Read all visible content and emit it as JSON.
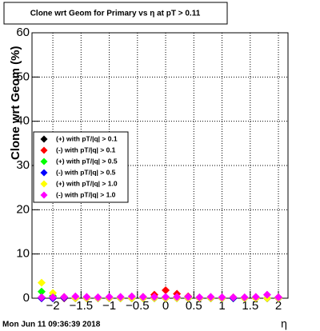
{
  "chart_data": {
    "type": "scatter",
    "title": "Clone wrt Geom for Primary vs   η at pT > 0.11",
    "y_label": "Clone wrt Geom (%)",
    "x_label": "η",
    "footer": "Mon Jun 11 09:36:39 2018",
    "x": [
      -2.2,
      -2.0,
      -1.8,
      -1.6,
      -1.4,
      -1.2,
      -1.0,
      -0.8,
      -0.6,
      -0.4,
      -0.2,
      0,
      0.2,
      0.4,
      0.6,
      0.8,
      1.0,
      1.2,
      1.4,
      1.6,
      1.8,
      2.0
    ],
    "series": [
      {
        "name": "(+) with pT/|q| > 0.1",
        "color": "#000000",
        "values": [
          0.1,
          0,
          0,
          0,
          0,
          0,
          0,
          0,
          0,
          0,
          0.1,
          0.2,
          0.1,
          0,
          0,
          0,
          0,
          0,
          0,
          0,
          0,
          0.1
        ]
      },
      {
        "name": "(-) with pT/|q| > 0.1",
        "color": "#ff0000",
        "values": [
          0,
          0,
          0,
          0,
          0,
          0,
          0,
          0,
          0,
          0.3,
          0.8,
          1.8,
          1.0,
          0.4,
          0,
          0,
          0,
          0,
          0,
          0,
          0,
          0.2
        ]
      },
      {
        "name": "(+) with pT/|q| > 0.5",
        "color": "#00ff00",
        "values": [
          1.5,
          0.5,
          0.2,
          0,
          0,
          0,
          0,
          0,
          0,
          0,
          0,
          0,
          0,
          0,
          0,
          0,
          0,
          0,
          0,
          0,
          0,
          0
        ]
      },
      {
        "name": "(-) with pT/|q| > 0.5",
        "color": "#0000ff",
        "values": [
          0,
          0,
          0.1,
          0,
          0,
          0,
          0,
          0,
          0,
          0,
          0,
          0,
          0,
          0,
          0,
          0,
          0,
          0,
          0.1,
          0.1,
          0,
          0
        ]
      },
      {
        "name": "(+) with pT/|q| > 1.0",
        "color": "#ffff00",
        "values": [
          3.5,
          1.2,
          0.3,
          0,
          0,
          0,
          0,
          0,
          0,
          0,
          0,
          0,
          0,
          0,
          0,
          0,
          0,
          0.2,
          0,
          0,
          0,
          0
        ]
      },
      {
        "name": "(-) with pT/|q| > 1.0",
        "color": "#ff00ff",
        "values": [
          0.2,
          0.2,
          0.3,
          0.4,
          0.3,
          0.2,
          0.3,
          0.3,
          0.4,
          0.3,
          0.3,
          0.3,
          0.3,
          0.3,
          0.2,
          0.3,
          0.2,
          0.2,
          0.2,
          0.3,
          0.8,
          0.2
        ]
      }
    ],
    "xlim": [
      -2.37,
      2.17
    ],
    "xticks": [
      {
        "value": -2,
        "label": "−2"
      },
      {
        "value": -1.5,
        "label": "−1.5"
      },
      {
        "value": -1,
        "label": "−1"
      },
      {
        "value": -0.5,
        "label": "−0.5"
      },
      0,
      0.5,
      1,
      1.5,
      2
    ],
    "ylim": [
      0,
      60
    ],
    "yticks": [
      0,
      10,
      20,
      30,
      40,
      50,
      60
    ],
    "grid": true
  }
}
